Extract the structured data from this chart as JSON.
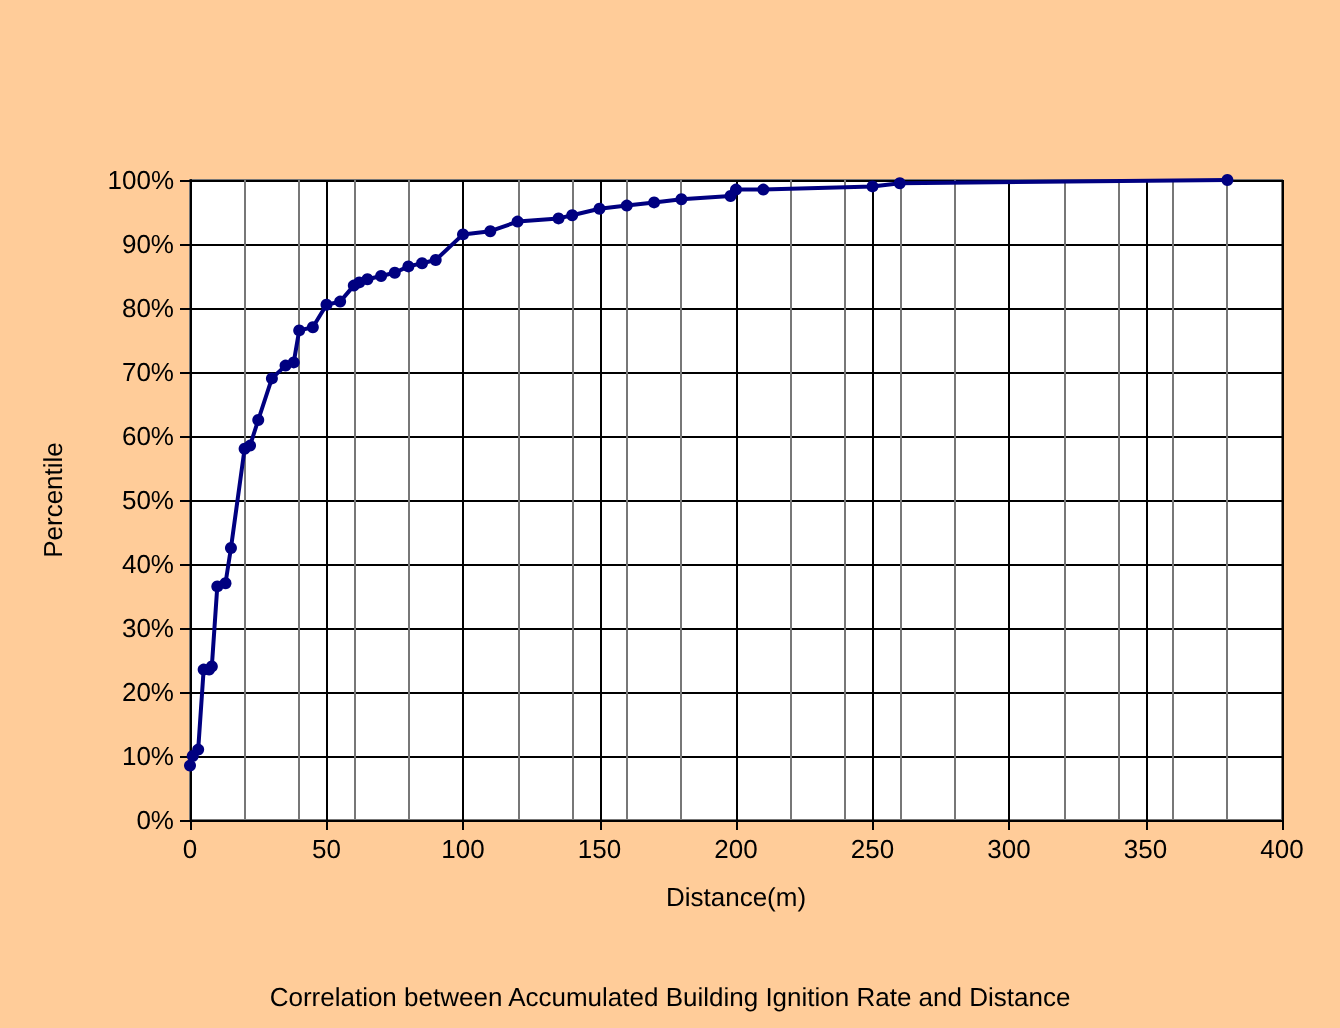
{
  "chart_data": {
    "type": "line",
    "title": "Correlation between Accumulated Building Ignition Rate and Distance",
    "xlabel": "Distance(m)",
    "ylabel": "Percentile",
    "x": [
      0,
      1,
      3,
      5,
      7,
      8,
      10,
      13,
      15,
      20,
      22,
      25,
      30,
      35,
      38,
      40,
      45,
      50,
      55,
      60,
      62,
      65,
      70,
      75,
      80,
      85,
      90,
      100,
      110,
      120,
      135,
      140,
      150,
      160,
      170,
      180,
      198,
      200,
      210,
      250,
      260,
      380
    ],
    "series": [
      {
        "color": "#000080",
        "values": [
          8.5,
          10,
          11,
          23.5,
          23.5,
          24,
          36.5,
          37,
          42.5,
          58,
          58.5,
          62.5,
          69,
          71,
          71.5,
          76.5,
          77,
          80.5,
          81,
          83.5,
          84,
          84.5,
          85,
          85.5,
          86.5,
          87,
          87.5,
          91.5,
          92,
          93.5,
          94,
          94.5,
          95.5,
          96,
          96.5,
          97,
          97.5,
          98.5,
          98.5,
          99,
          99.5,
          100
        ]
      }
    ],
    "xlim": [
      0,
      400
    ],
    "xticks": [
      0,
      50,
      100,
      150,
      200,
      250,
      300,
      350,
      400
    ],
    "ylim": [
      0,
      100
    ],
    "yticks": [
      {
        "value": 0,
        "label": "0%"
      },
      {
        "value": 10,
        "label": "10%"
      },
      {
        "value": 20,
        "label": "20%"
      },
      {
        "value": 30,
        "label": "30%"
      },
      {
        "value": 40,
        "label": "40%"
      },
      {
        "value": 50,
        "label": "50%"
      },
      {
        "value": 60,
        "label": "60%"
      },
      {
        "value": 70,
        "label": "70%"
      },
      {
        "value": 80,
        "label": "80%"
      },
      {
        "value": 90,
        "label": "90%"
      },
      {
        "value": 100,
        "label": "100%"
      }
    ],
    "grid": true,
    "marker": "circle",
    "line_style": "solid"
  }
}
